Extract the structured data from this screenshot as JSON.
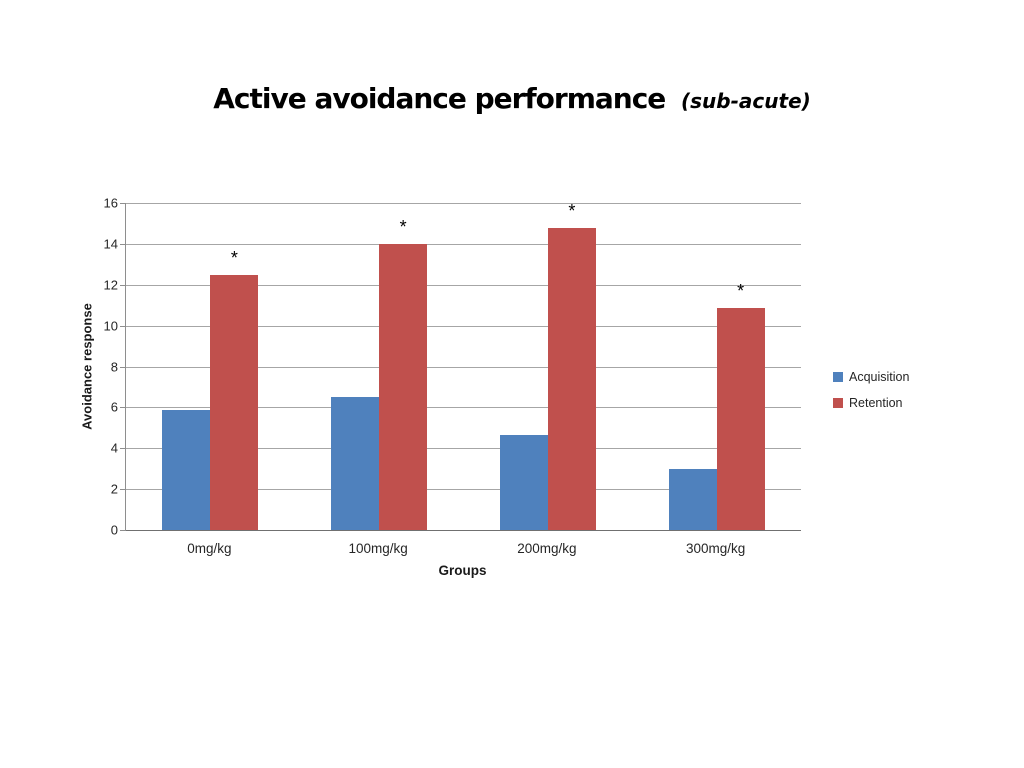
{
  "title": {
    "main": "Active avoidance performance",
    "suffix": "(sub-acute)"
  },
  "chart_data": {
    "type": "bar",
    "title": "Active avoidance performance (sub-acute)",
    "categories": [
      "0mg/kg",
      "100mg/kg",
      "200mg/kg",
      "300mg/kg"
    ],
    "series": [
      {
        "name": "Acquisition",
        "color": "#4f81bd",
        "values": [
          5.85,
          6.5,
          4.65,
          3.0
        ],
        "annotations": [
          "",
          "",
          "",
          ""
        ]
      },
      {
        "name": "Retention",
        "color": "#c0504d",
        "values": [
          12.5,
          14.0,
          14.8,
          10.85
        ],
        "annotations": [
          "*",
          "*",
          "*",
          "*"
        ]
      }
    ],
    "xlabel": "Groups",
    "ylabel": "Avoidance response",
    "ylim": [
      0,
      16
    ],
    "ytick_step": 2,
    "grid": true,
    "legend_position": "right"
  },
  "colors": {
    "grid": "#a6a6a6",
    "axis": "#8e8e8e",
    "text": "#262626"
  }
}
